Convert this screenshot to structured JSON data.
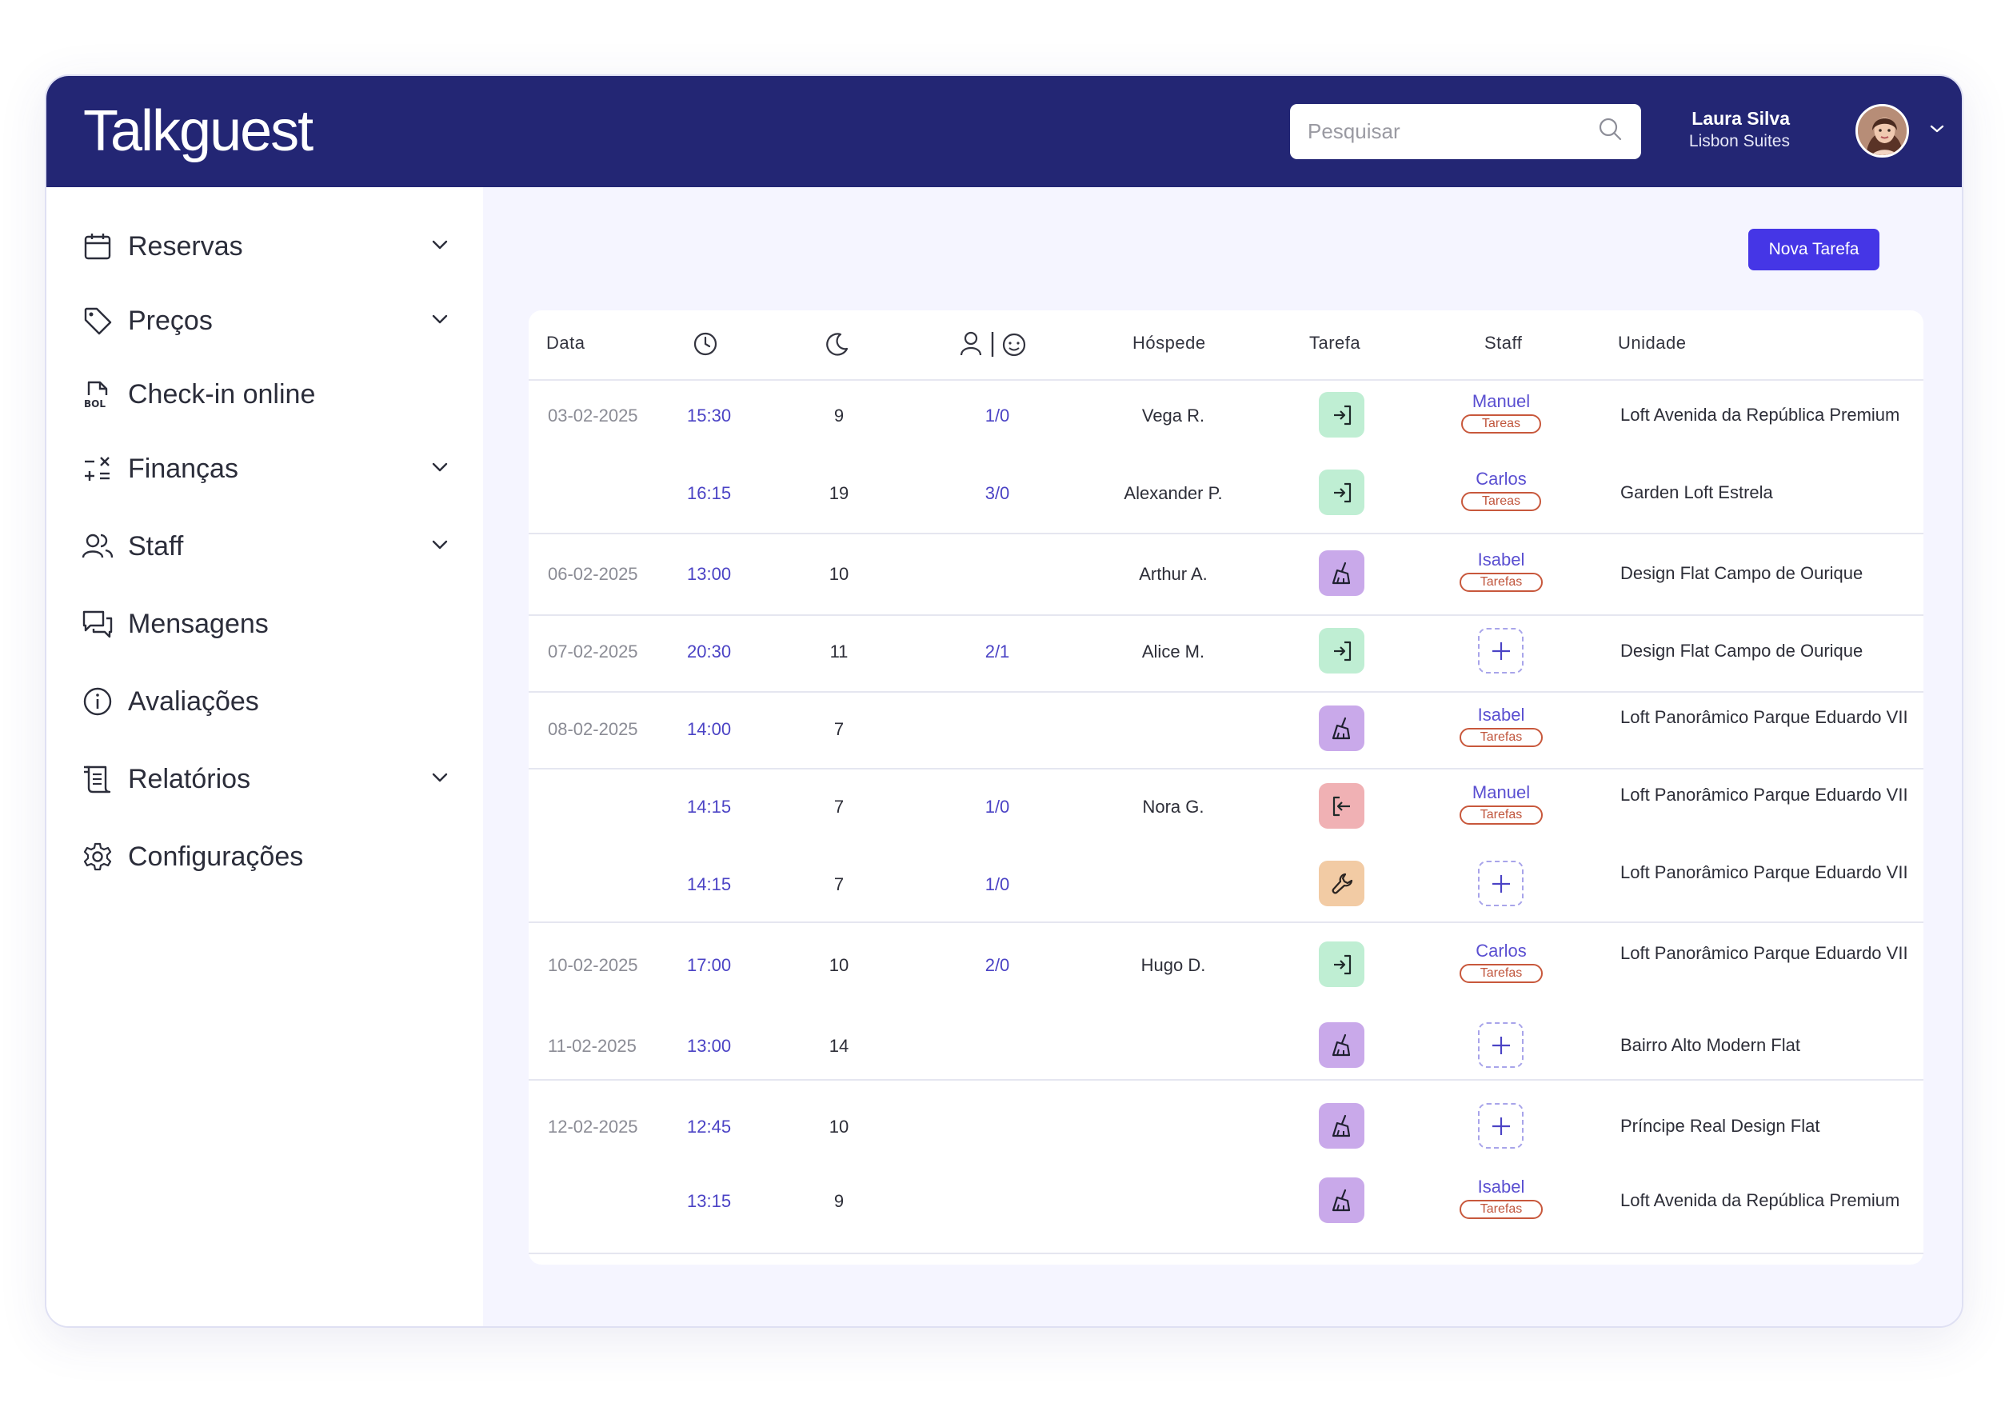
{
  "app": {
    "logo": "Talkguest"
  },
  "search": {
    "placeholder": "Pesquisar"
  },
  "user": {
    "name": "Laura Silva",
    "org": "Lisbon Suites"
  },
  "sidebar": {
    "items": [
      {
        "label": "Reservas",
        "icon": "calendar-icon",
        "dropdown": true
      },
      {
        "label": "Preços",
        "icon": "tag-icon",
        "dropdown": true
      },
      {
        "label": "Check-in online",
        "icon": "bol-document-icon",
        "dropdown": false
      },
      {
        "label": "Finanças",
        "icon": "math-operators-icon",
        "dropdown": true
      },
      {
        "label": "Staff",
        "icon": "users-icon",
        "dropdown": true
      },
      {
        "label": "Mensagens",
        "icon": "chat-icon",
        "dropdown": false
      },
      {
        "label": "Avaliações",
        "icon": "info-icon",
        "dropdown": false
      },
      {
        "label": "Relatórios",
        "icon": "report-icon",
        "dropdown": true
      },
      {
        "label": "Configurações",
        "icon": "gear-icon",
        "dropdown": false
      }
    ]
  },
  "actions": {
    "new_task": "Nova Tarefa"
  },
  "table": {
    "headers": {
      "date": "Data",
      "time_icon": "clock-icon",
      "nights_icon": "moon-icon",
      "pax_icon": "adult-child-icon",
      "guest": "Hóspede",
      "task": "Tarefa",
      "staff": "Staff",
      "unit": "Unidade"
    },
    "rows": [
      {
        "date": "03-02-2025",
        "time": "15:30",
        "nights": "9",
        "pax": "1/0",
        "guest": "Vega R.",
        "task": "check-in",
        "staff": "Manuel",
        "staff_tag": "Tareas",
        "unit": "Loft Avenida da República Premium"
      },
      {
        "date": "",
        "time": "16:15",
        "nights": "19",
        "pax": "3/0",
        "guest": "Alexander P.",
        "task": "check-in",
        "staff": "Carlos",
        "staff_tag": "Tareas",
        "unit": "Garden Loft Estrela"
      },
      {
        "date": "06-02-2025",
        "time": "13:00",
        "nights": "10",
        "pax": "",
        "guest": "Arthur A.",
        "task": "cleaning",
        "staff": "Isabel",
        "staff_tag": "Tarefas",
        "unit": "Design Flat Campo de Ourique"
      },
      {
        "date": "07-02-2025",
        "time": "20:30",
        "nights": "11",
        "pax": "2/1",
        "guest": "Alice M.",
        "task": "check-in",
        "staff": "",
        "staff_tag": "",
        "unit": "Design Flat Campo de Ourique"
      },
      {
        "date": "08-02-2025",
        "time": "14:00",
        "nights": "7",
        "pax": "",
        "guest": "",
        "task": "cleaning",
        "staff": "Isabel",
        "staff_tag": "Tarefas",
        "unit": "Loft Panorâmico Parque Eduardo VII"
      },
      {
        "date": "",
        "time": "14:15",
        "nights": "7",
        "pax": "1/0",
        "guest": "Nora G.",
        "task": "check-out",
        "staff": "Manuel",
        "staff_tag": "Tarefas",
        "unit": "Loft Panorâmico Parque Eduardo VII"
      },
      {
        "date": "",
        "time": "14:15",
        "nights": "7",
        "pax": "1/0",
        "guest": "",
        "task": "maintenance",
        "staff": "",
        "staff_tag": "",
        "unit": "Loft Panorâmico Parque Eduardo VII"
      },
      {
        "date": "10-02-2025",
        "time": "17:00",
        "nights": "10",
        "pax": "2/0",
        "guest": "Hugo D.",
        "task": "check-in",
        "staff": "Carlos",
        "staff_tag": "Tarefas",
        "unit": "Loft Panorâmico Parque Eduardo VII"
      },
      {
        "date": "11-02-2025",
        "time": "13:00",
        "nights": "14",
        "pax": "",
        "guest": "",
        "task": "cleaning",
        "staff": "",
        "staff_tag": "",
        "unit": "Bairro Alto Modern Flat"
      },
      {
        "date": "12-02-2025",
        "time": "12:45",
        "nights": "10",
        "pax": "",
        "guest": "",
        "task": "cleaning",
        "staff": "",
        "staff_tag": "",
        "unit": "Príncipe Real Design Flat"
      },
      {
        "date": "",
        "time": "13:15",
        "nights": "9",
        "pax": "",
        "guest": "",
        "task": "cleaning",
        "staff": "Isabel",
        "staff_tag": "Tarefas",
        "unit": "Loft Avenida da República Premium"
      }
    ]
  },
  "colors": {
    "header_bg": "#232674",
    "accent": "#4536e6",
    "checkin": "#bfeed3",
    "cleaning": "#c9a9ea",
    "checkout": "#f0b1b4",
    "maintenance": "#f2cba4"
  }
}
